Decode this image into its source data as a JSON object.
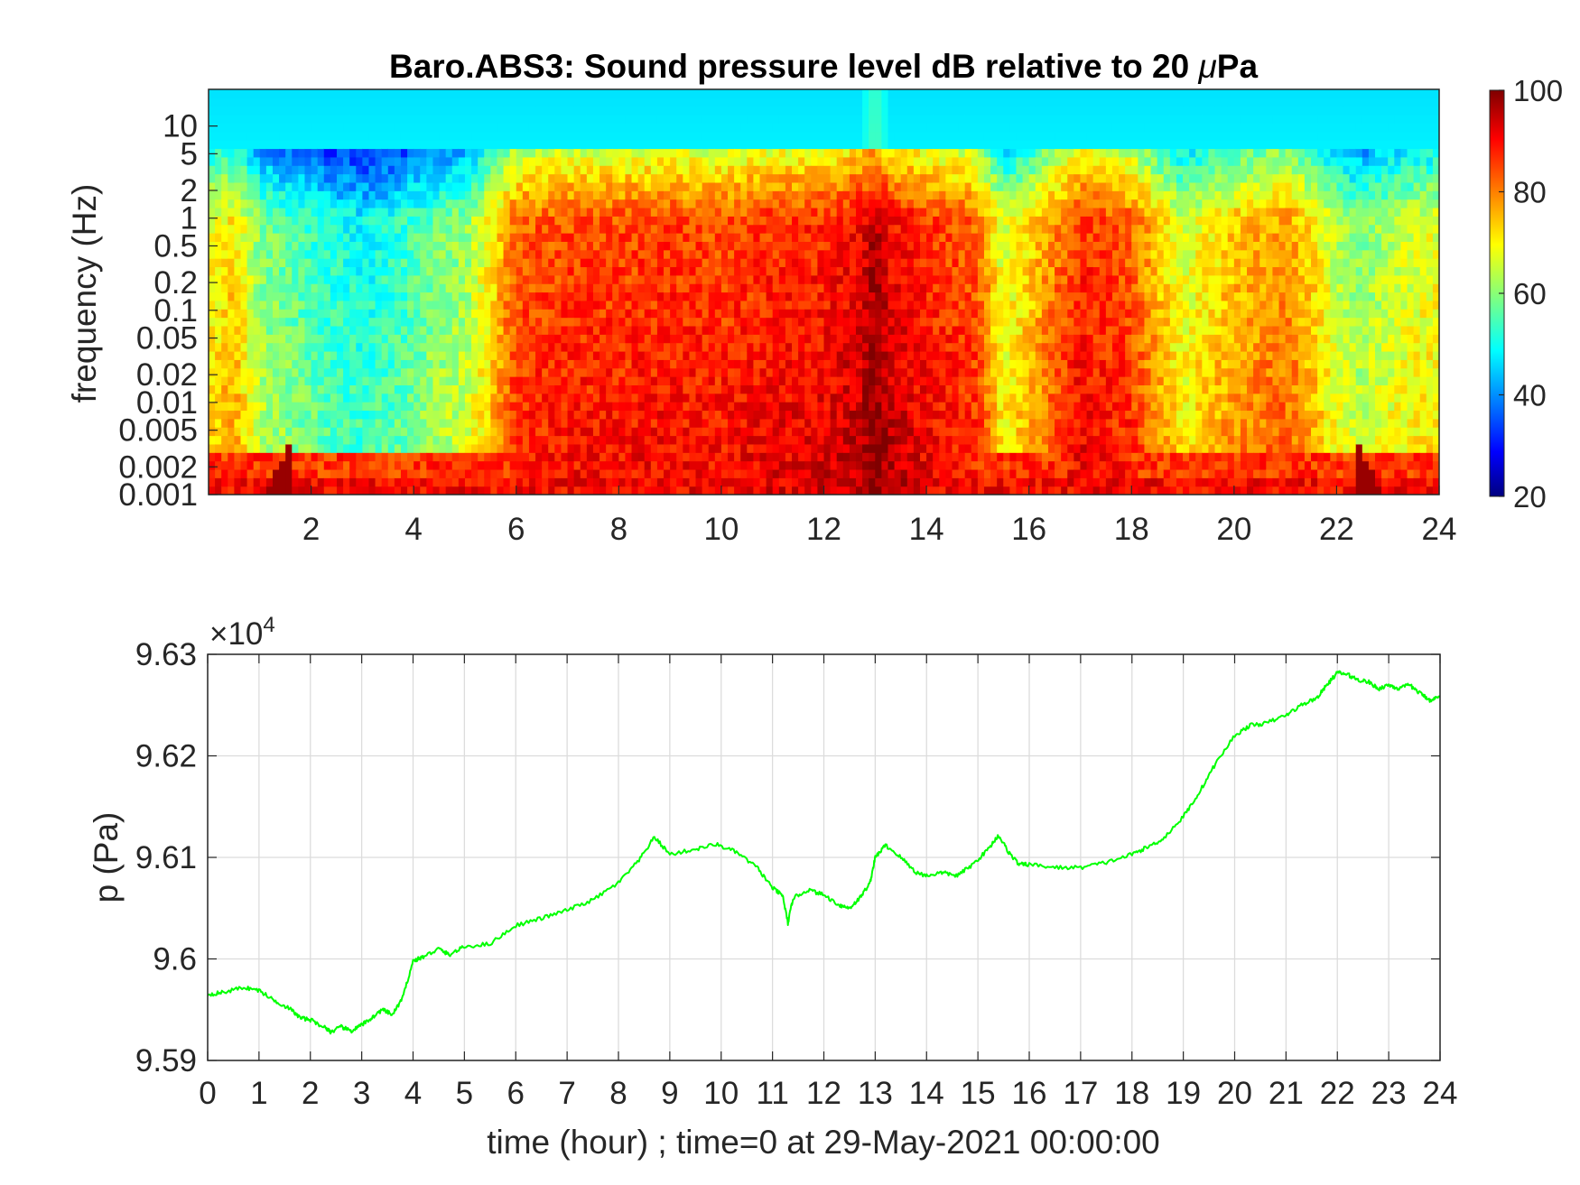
{
  "chart_data": [
    {
      "type": "heatmap",
      "title": "Baro.ABS3: Sound pressure level dB relative to 20 ",
      "title_mu": "μ",
      "title_tail": "Pa",
      "ylabel": "frequency (Hz)",
      "xlabel": "",
      "yscale": "log",
      "xlim": [
        0,
        24
      ],
      "ylim": [
        0.001,
        25
      ],
      "x_ticks": [
        2,
        4,
        6,
        8,
        10,
        12,
        14,
        16,
        18,
        20,
        22,
        24
      ],
      "x_tick_labels": [
        "2",
        "4",
        "6",
        "8",
        "10",
        "12",
        "14",
        "16",
        "18",
        "20",
        "22",
        "24"
      ],
      "y_ticks": [
        0.001,
        0.002,
        0.005,
        0.01,
        0.02,
        0.05,
        0.1,
        0.2,
        0.5,
        1,
        2,
        5,
        10
      ],
      "y_tick_labels": [
        "0.001",
        "0.002",
        "0.005",
        "0.01",
        "0.02",
        "0.05",
        "0.1",
        "0.2",
        "0.5",
        "1",
        "2",
        "5",
        "10"
      ],
      "colormap": "jet",
      "colorbar": {
        "range": [
          20,
          100
        ],
        "ticks": [
          20,
          40,
          60,
          80,
          100
        ],
        "tick_labels": [
          "20",
          "40",
          "60",
          "80",
          "100"
        ],
        "placement": "right"
      },
      "time_profile": [
        [
          0.0,
          66
        ],
        [
          0.5,
          70
        ],
        [
          1.0,
          58
        ],
        [
          1.5,
          55
        ],
        [
          2.0,
          52
        ],
        [
          2.5,
          50
        ],
        [
          3.0,
          48
        ],
        [
          3.5,
          50
        ],
        [
          4.0,
          53
        ],
        [
          4.5,
          57
        ],
        [
          5.0,
          59
        ],
        [
          5.5,
          68
        ],
        [
          6.0,
          80
        ],
        [
          7.0,
          82
        ],
        [
          8.0,
          82
        ],
        [
          9.0,
          83
        ],
        [
          10.0,
          82
        ],
        [
          11.0,
          84
        ],
        [
          12.0,
          85
        ],
        [
          12.7,
          88
        ],
        [
          13.0,
          94
        ],
        [
          13.3,
          88
        ],
        [
          14.0,
          84
        ],
        [
          14.5,
          82
        ],
        [
          15.0,
          80
        ],
        [
          15.5,
          64
        ],
        [
          16.0,
          70
        ],
        [
          17.0,
          84
        ],
        [
          18.0,
          80
        ],
        [
          19.0,
          64
        ],
        [
          20.0,
          72
        ],
        [
          21.0,
          76
        ],
        [
          21.5,
          70
        ],
        [
          22.0,
          62
        ],
        [
          22.5,
          58
        ],
        [
          23.0,
          62
        ],
        [
          24.0,
          66
        ]
      ]
    },
    {
      "type": "line",
      "title": "",
      "xlabel": "time (hour) ; time=0 at 29-May-2021 00:00:00",
      "ylabel": "p (Pa)",
      "y_multiplier": "×10",
      "y_multiplier_exp": "4",
      "xlim": [
        0,
        24
      ],
      "ylim": [
        95900,
        96300
      ],
      "grid": true,
      "x_ticks": [
        0,
        1,
        2,
        3,
        4,
        5,
        6,
        7,
        8,
        9,
        10,
        11,
        12,
        13,
        14,
        15,
        16,
        17,
        18,
        19,
        20,
        21,
        22,
        23,
        24
      ],
      "x_tick_labels": [
        "0",
        "1",
        "2",
        "3",
        "4",
        "5",
        "6",
        "7",
        "8",
        "9",
        "10",
        "11",
        "12",
        "13",
        "14",
        "15",
        "16",
        "17",
        "18",
        "19",
        "20",
        "21",
        "22",
        "23",
        "24"
      ],
      "y_ticks": [
        95900,
        96000,
        96100,
        96200,
        96300
      ],
      "y_tick_labels": [
        "9.59",
        "9.6",
        "9.61",
        "9.62",
        "9.63"
      ],
      "series": [
        {
          "color": "#00ff00",
          "x": [
            0,
            0.3,
            0.7,
            1.0,
            1.3,
            1.6,
            1.8,
            2.0,
            2.3,
            2.4,
            2.6,
            2.8,
            3.0,
            3.2,
            3.4,
            3.6,
            3.8,
            4.0,
            4.2,
            4.5,
            4.7,
            5.0,
            5.5,
            6.0,
            6.5,
            7.0,
            7.5,
            8.0,
            8.4,
            8.7,
            9.0,
            9.5,
            9.9,
            10.3,
            10.7,
            11.0,
            11.2,
            11.3,
            11.4,
            11.7,
            12.0,
            12.3,
            12.5,
            12.7,
            12.9,
            13.0,
            13.2,
            13.5,
            13.8,
            14.0,
            14.3,
            14.6,
            14.9,
            15.2,
            15.4,
            15.6,
            15.8,
            16.0,
            16.5,
            17.0,
            17.5,
            18.0,
            18.3,
            18.6,
            19.0,
            19.3,
            19.6,
            20.0,
            20.3,
            20.6,
            21.0,
            21.3,
            21.6,
            21.8,
            22.0,
            22.2,
            22.4,
            22.6,
            22.8,
            23.0,
            23.2,
            23.4,
            23.6,
            23.8,
            24.0
          ],
          "y": [
            95965,
            95967,
            95972,
            95969,
            95959,
            95951,
            95942,
            95940,
            95932,
            95928,
            95933,
            95929,
            95935,
            95942,
            95950,
            95945,
            95962,
            95998,
            96002,
            96010,
            96004,
            96012,
            96015,
            96033,
            96040,
            96048,
            96058,
            96075,
            96097,
            96120,
            96103,
            96108,
            96113,
            96105,
            96090,
            96070,
            96062,
            96035,
            96060,
            96068,
            96063,
            96053,
            96050,
            96060,
            96075,
            96100,
            96112,
            96100,
            96085,
            96082,
            96085,
            96082,
            96093,
            96108,
            96122,
            96105,
            96093,
            96093,
            96090,
            96090,
            96095,
            96103,
            96110,
            96118,
            96140,
            96163,
            96190,
            96220,
            96230,
            96232,
            96240,
            96250,
            96257,
            96270,
            96282,
            96280,
            96275,
            96273,
            96266,
            96270,
            96266,
            96270,
            96262,
            96255,
            96258
          ]
        }
      ]
    }
  ]
}
